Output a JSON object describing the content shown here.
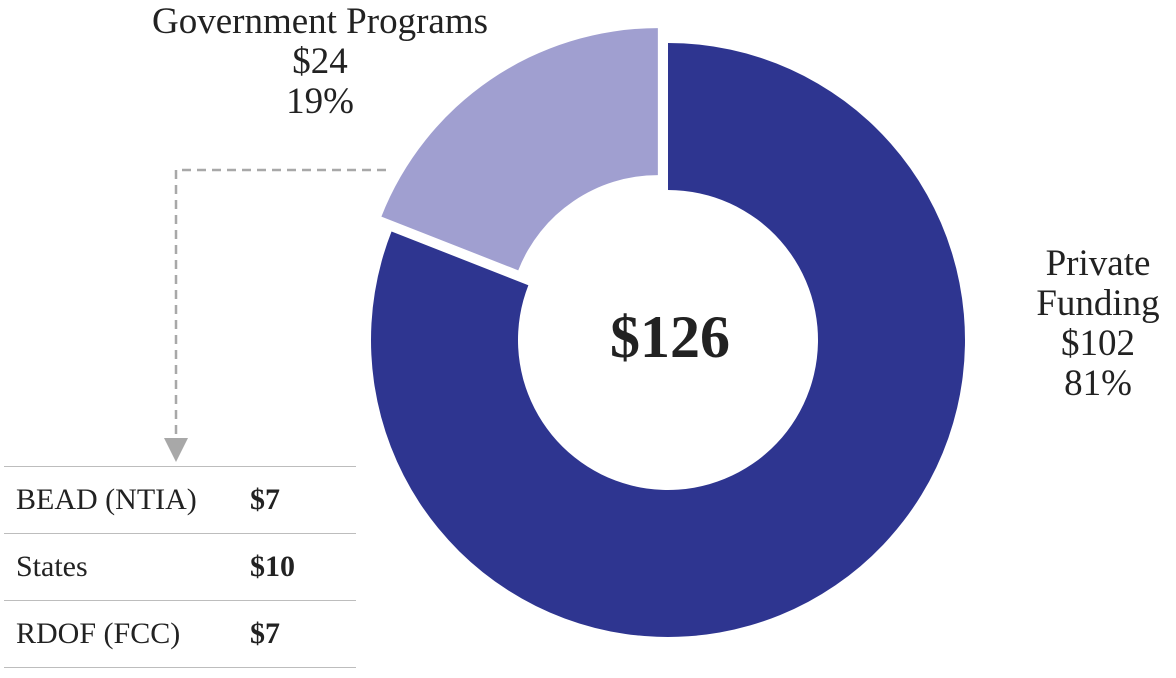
{
  "chart_data": {
    "type": "pie",
    "variant": "donut",
    "center_label": "$126",
    "slices": [
      {
        "name_lines": [
          "Private",
          "Funding"
        ],
        "value_label": "$102",
        "percent_label": "81%",
        "value": 102,
        "percent": 81,
        "color": "#2e3590"
      },
      {
        "name_lines": [
          "Government Programs"
        ],
        "value_label": "$24",
        "percent_label": "19%",
        "value": 24,
        "percent": 19,
        "color": "#a09fd0",
        "exploded": true
      }
    ],
    "breakdown": {
      "of": "Government Programs",
      "rows": [
        {
          "name": "BEAD (NTIA)",
          "value": "$7"
        },
        {
          "name": "States",
          "value": "$10"
        },
        {
          "name": "RDOF (FCC)",
          "value": "$7"
        }
      ]
    },
    "connector_color": "#a8a8a8"
  }
}
